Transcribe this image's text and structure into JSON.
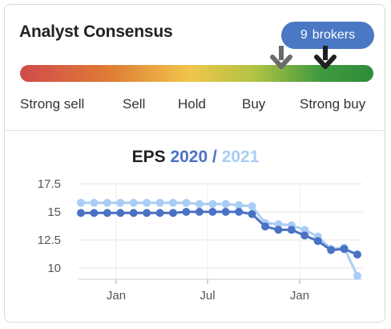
{
  "header": {
    "title": "Analyst Consensus",
    "badge_count": "9",
    "badge_text": "brokers"
  },
  "rating_scale": {
    "labels": [
      "Strong sell",
      "Sell",
      "Hold",
      "Buy",
      "Strong buy"
    ],
    "markers": [
      {
        "name": "previous",
        "color": "#6b6b6b",
        "position_fraction": 0.74
      },
      {
        "name": "current",
        "color": "#1f1f1f",
        "position_fraction": 0.865
      }
    ],
    "gradient_colors": [
      "#d04b4b",
      "#df7b35",
      "#efc54a",
      "#b3c444",
      "#3f9a3e",
      "#2f8c3a"
    ]
  },
  "eps_chart": {
    "title_prefix": "EPS",
    "year_a": "2020",
    "separator": " / ",
    "year_b": "2021",
    "color_a": "#4a72c4",
    "color_b": "#a9cdf5"
  },
  "chart_data": {
    "type": "line",
    "title": "EPS 2020 / 2021",
    "yticks": [
      "17.5",
      "15",
      "12.5",
      "10"
    ],
    "ylim": [
      9.0,
      17.5
    ],
    "xticks": [
      "Jan",
      "Jul",
      "Jan"
    ],
    "grid": true,
    "series": [
      {
        "name": "2021",
        "color": "#a9cdf5",
        "values": [
          15.8,
          15.8,
          15.8,
          15.8,
          15.8,
          15.8,
          15.8,
          15.8,
          15.8,
          15.7,
          15.7,
          15.7,
          15.6,
          15.5,
          14.0,
          13.9,
          13.8,
          13.4,
          12.8,
          11.7,
          11.8,
          9.3
        ]
      },
      {
        "name": "2020",
        "color": "#4a72c4",
        "values": [
          14.9,
          14.9,
          14.9,
          14.9,
          14.9,
          14.9,
          14.9,
          14.9,
          15.0,
          15.0,
          15.0,
          15.0,
          15.0,
          14.8,
          13.7,
          13.4,
          13.4,
          12.9,
          12.4,
          11.6,
          11.7,
          11.2
        ]
      }
    ]
  }
}
